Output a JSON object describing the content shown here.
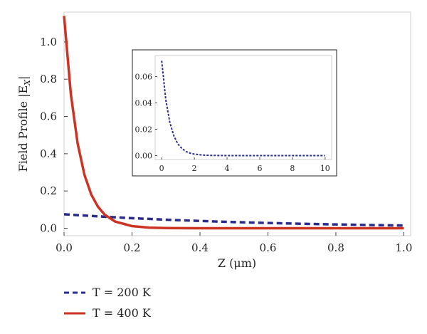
{
  "chart_data": [
    {
      "type": "line",
      "xlabel": "Z (μm)",
      "ylabel": "Field Profile |E",
      "ylabel_sub": "X",
      "ylabel_end": "|",
      "xlim": [
        0,
        1.02
      ],
      "ylim": [
        -0.04,
        1.16
      ],
      "xticks": [
        0.0,
        0.2,
        0.4,
        0.6,
        0.8,
        1.0
      ],
      "xtick_labels": [
        "0.0",
        "0.2",
        "0.4",
        "0.6",
        "0.8",
        "1.0"
      ],
      "yticks": [
        0.0,
        0.2,
        0.4,
        0.6,
        0.8,
        1.0
      ],
      "ytick_labels": [
        "0.0",
        "0.2",
        "0.4",
        "0.6",
        "0.8",
        "1.0"
      ],
      "legend_position": "bottom-left",
      "series": [
        {
          "name": "T = 200 K",
          "color": "#2b2b8c",
          "dash": "dashed",
          "x": [
            0,
            0.1,
            0.2,
            0.3,
            0.4,
            0.5,
            0.6,
            0.7,
            0.8,
            0.9,
            1.0
          ],
          "y": [
            0.075,
            0.0638,
            0.0542,
            0.0461,
            0.0392,
            0.0333,
            0.0283,
            0.0241,
            0.0205,
            0.0174,
            0.0148
          ]
        },
        {
          "name": "T = 400 K",
          "color": "#cc3322",
          "dash": "solid",
          "x": [
            0,
            0.02,
            0.04,
            0.06,
            0.08,
            0.1,
            0.12,
            0.15,
            0.2,
            0.25,
            0.3,
            0.4,
            0.5,
            0.6,
            0.7,
            0.8,
            0.9,
            1.0
          ],
          "y": [
            1.14,
            0.72,
            0.455,
            0.287,
            0.181,
            0.115,
            0.0724,
            0.0364,
            0.0116,
            0.0037,
            0.0012,
            0.0001,
            0,
            0,
            0,
            0,
            0,
            0
          ]
        }
      ]
    },
    {
      "type": "line",
      "inset": true,
      "xlim": [
        -0.4,
        10.4
      ],
      "ylim": [
        -0.003,
        0.076
      ],
      "xticks": [
        0,
        2,
        4,
        6,
        8,
        10
      ],
      "xtick_labels": [
        "0",
        "2",
        "4",
        "6",
        "8",
        "10"
      ],
      "yticks": [
        0,
        0.02,
        0.04,
        0.06
      ],
      "ytick_labels": [
        "0.00",
        "0.02",
        "0.04",
        "0.06"
      ],
      "series": [
        {
          "color": "#2b2b8c",
          "dash": "dotted",
          "x": [
            0,
            0.25,
            0.5,
            0.75,
            1.0,
            1.25,
            1.5,
            1.75,
            2.0,
            2.5,
            3.0,
            4.0,
            5.0,
            6.0,
            7.0,
            8.0,
            9.0,
            10.0
          ],
          "y": [
            0.072,
            0.0425,
            0.0251,
            0.0148,
            0.0087,
            0.0052,
            0.003,
            0.0018,
            0.0011,
            0.0004,
            0.00013,
            0,
            0,
            0,
            0,
            0,
            0,
            0
          ]
        }
      ]
    }
  ]
}
